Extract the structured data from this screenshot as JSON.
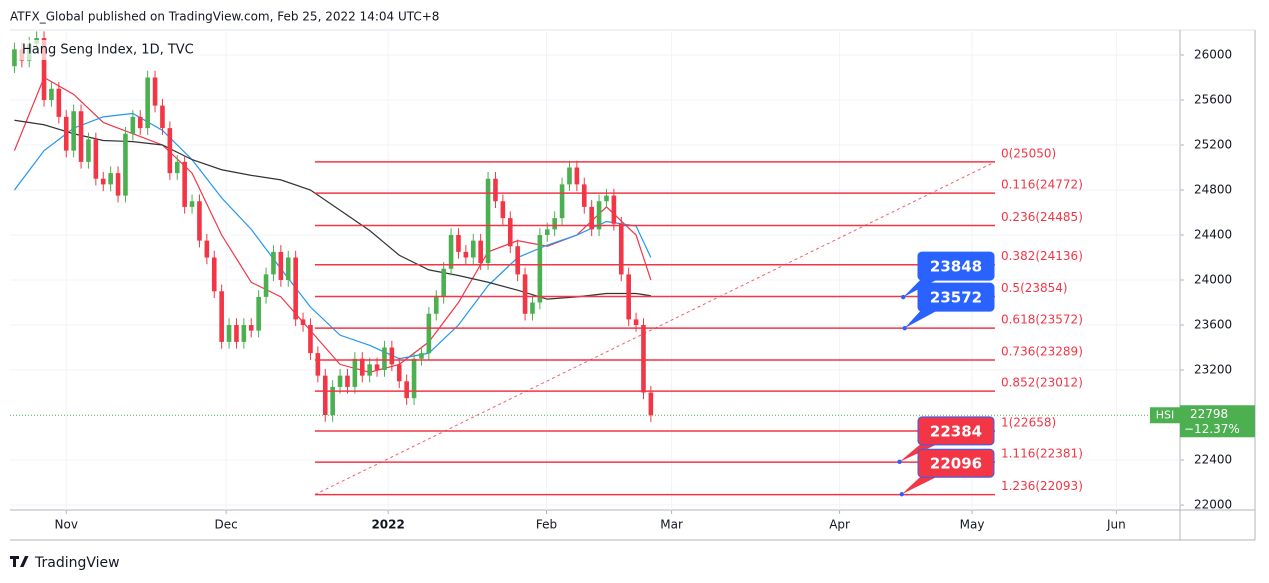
{
  "header": {
    "publisher": "ATFX_Global published on TradingView.com, Feb 25, 2022 14:04 UTC+8",
    "brand": "TradingView"
  },
  "chart_data": {
    "type": "candlestick",
    "title": "Hang Seng Index, 1D, TVC",
    "up_color": "#4caf50",
    "down_color": "#f23645",
    "xlim": [
      -0.6,
      157.5
    ],
    "xticks": [
      {
        "value": 7,
        "label": "Nov"
      },
      {
        "value": 28.6,
        "label": "Dec"
      },
      {
        "value": 50.5,
        "label": "2022"
      },
      {
        "value": 71.9,
        "label": "Feb"
      },
      {
        "value": 88.8,
        "label": "Mar"
      },
      {
        "value": 111.5,
        "label": "Apr"
      },
      {
        "value": 129.4,
        "label": "May"
      },
      {
        "value": 148.9,
        "label": "Jun"
      }
    ],
    "ylim": [
      21956,
      26222
    ],
    "yticks": [
      22000,
      22400,
      23200,
      23600,
      24000,
      24400,
      24800,
      25200,
      25600,
      26000
    ],
    "grid": true,
    "open": [
      25900,
      26050,
      25950,
      26100,
      26150,
      25600,
      25700,
      25450,
      25150,
      25500,
      25050,
      25250,
      24900,
      24850,
      24950,
      24750,
      25300,
      25450,
      25350,
      25800,
      25550,
      25350,
      24950,
      25050,
      24650,
      24700,
      24350,
      24200,
      23900,
      23450,
      23600,
      23450,
      23600,
      23550,
      23850,
      24050,
      24250,
      24000,
      24200,
      23650,
      23600,
      23350,
      23150,
      22800,
      23050,
      23150,
      23050,
      23300,
      23150,
      23250,
      23200,
      23400,
      23250,
      23100,
      22950,
      23300,
      23350,
      23700,
      23850,
      24100,
      24400,
      24250,
      24200,
      24350,
      24150,
      24900,
      24700,
      24550,
      24300,
      24050,
      23700,
      23800,
      24400,
      24450,
      24550,
      24850,
      25000,
      24850,
      24650,
      24450,
      24700,
      24750,
      24500,
      24050,
      23650,
      23600,
      23000
    ],
    "high": [
      26110,
      26110,
      26160,
      26210,
      26210,
      25760,
      25760,
      25510,
      25560,
      25560,
      25310,
      25310,
      24960,
      25010,
      25010,
      25360,
      25510,
      25510,
      25860,
      25860,
      25610,
      25410,
      25110,
      25110,
      24760,
      24760,
      24410,
      24260,
      23960,
      23660,
      23660,
      23660,
      23660,
      23910,
      24110,
      24310,
      24310,
      24260,
      24260,
      23710,
      23660,
      23410,
      23210,
      23110,
      23210,
      23210,
      23360,
      23360,
      23310,
      23310,
      23460,
      23460,
      23310,
      23160,
      23360,
      23410,
      23760,
      23910,
      24160,
      24460,
      24460,
      24310,
      24410,
      24410,
      24960,
      24960,
      24760,
      24610,
      24360,
      24110,
      23860,
      24460,
      24510,
      24610,
      24910,
      25060,
      25060,
      24910,
      24710,
      24760,
      24810,
      24810,
      24560,
      24110,
      23710,
      23660,
      23060
    ],
    "low": [
      25840,
      25890,
      25890,
      26040,
      25540,
      25540,
      25390,
      25090,
      25090,
      24990,
      24990,
      24840,
      24790,
      24790,
      24690,
      24690,
      25240,
      25290,
      25290,
      25490,
      25290,
      24890,
      24890,
      24590,
      24590,
      24290,
      24140,
      23840,
      23390,
      23390,
      23390,
      23390,
      23490,
      23490,
      23790,
      23990,
      23940,
      23940,
      23590,
      23540,
      23290,
      23090,
      22740,
      22740,
      22990,
      22990,
      22990,
      23090,
      23090,
      23140,
      23140,
      23190,
      23040,
      22890,
      22890,
      23240,
      23290,
      23640,
      23790,
      24040,
      24190,
      24140,
      24140,
      24090,
      24090,
      24640,
      24490,
      24240,
      23990,
      23640,
      23640,
      23740,
      24340,
      24390,
      24490,
      24790,
      24790,
      24590,
      24390,
      24390,
      24640,
      24440,
      23990,
      23590,
      23540,
      22940,
      22738
    ],
    "close": [
      26050,
      25950,
      26100,
      26150,
      25600,
      25700,
      25450,
      25150,
      25500,
      25050,
      25250,
      24900,
      24850,
      24950,
      24750,
      25300,
      25450,
      25350,
      25800,
      25550,
      25350,
      24950,
      25050,
      24650,
      24700,
      24350,
      24200,
      23900,
      23450,
      23600,
      23450,
      23600,
      23550,
      23850,
      24050,
      24250,
      24000,
      24200,
      23650,
      23600,
      23350,
      23150,
      22800,
      23050,
      23150,
      23050,
      23300,
      23150,
      23250,
      23200,
      23400,
      23250,
      23100,
      22950,
      23300,
      23350,
      23700,
      23850,
      24100,
      24400,
      24250,
      24200,
      24350,
      24150,
      24900,
      24700,
      24550,
      24300,
      24050,
      23700,
      23800,
      24400,
      24450,
      24550,
      24850,
      25000,
      24850,
      24650,
      24450,
      24700,
      24750,
      24500,
      24050,
      23650,
      23600,
      23000,
      22798
    ],
    "series": [
      {
        "color": "#f23645",
        "x": [
          0,
          4,
          8,
          12,
          16,
          20,
          24,
          28,
          32,
          36,
          40,
          44,
          48,
          52,
          56,
          60,
          64,
          68,
          72,
          76,
          80,
          84,
          86
        ],
        "values": [
          25150,
          25800,
          25650,
          25400,
          25300,
          25200,
          24950,
          24400,
          23980,
          23850,
          23550,
          23250,
          23180,
          23250,
          23450,
          23800,
          24250,
          24350,
          24300,
          24400,
          24650,
          24400,
          24000
        ]
      },
      {
        "color": "#2196f3",
        "x": [
          0,
          4,
          8,
          12,
          16,
          20,
          24,
          28,
          32,
          36,
          40,
          44,
          48,
          52,
          56,
          60,
          64,
          68,
          72,
          76,
          80,
          84,
          86
        ],
        "values": [
          24800,
          25150,
          25350,
          25450,
          25480,
          25330,
          25070,
          24730,
          24450,
          24100,
          23760,
          23510,
          23420,
          23300,
          23350,
          23600,
          23950,
          24200,
          24310,
          24400,
          24520,
          24480,
          24200
        ]
      },
      {
        "color": "#333333",
        "x": [
          0,
          4,
          8,
          12,
          16,
          20,
          24,
          28,
          32,
          36,
          40,
          44,
          48,
          52,
          56,
          60,
          64,
          68,
          72,
          76,
          80,
          84,
          86
        ],
        "values": [
          25420,
          25380,
          25300,
          25240,
          25230,
          25200,
          25070,
          24980,
          24930,
          24890,
          24800,
          24620,
          24440,
          24220,
          24090,
          24040,
          23980,
          23910,
          23830,
          23850,
          23880,
          23880,
          23860
        ]
      }
    ],
    "fib": {
      "color": "#f23645",
      "x_start": 40.6,
      "x_end": 132.5,
      "levels": [
        {
          "value": 25050,
          "label": "0(25050)"
        },
        {
          "value": 24772,
          "label": "0.116(24772)"
        },
        {
          "value": 24485,
          "label": "0.236(24485)"
        },
        {
          "value": 24136,
          "label": "0.382(24136)"
        },
        {
          "value": 23854,
          "label": "0.5(23854)"
        },
        {
          "value": 23572,
          "label": "0.618(23572)"
        },
        {
          "value": 23289,
          "label": "0.736(23289)"
        },
        {
          "value": 23012,
          "label": "0.852(23012)"
        },
        {
          "value": 22658,
          "label": "1(22658)"
        },
        {
          "value": 22381,
          "label": "1.116(22381)"
        },
        {
          "value": 22093,
          "label": "1.236(22093)"
        }
      ]
    },
    "callouts": [
      {
        "x": 120.1,
        "value": 23848,
        "color": "#2962ff"
      },
      {
        "x": 120.3,
        "value": 23572,
        "color": "#2962ff"
      },
      {
        "x": 119.6,
        "value": 22384,
        "color": "#f23645"
      },
      {
        "x": 119.9,
        "value": 22096,
        "color": "#f23645"
      }
    ],
    "price_tag": {
      "symbol": "HSI",
      "value": 22798,
      "change": {
        "value": -12.37,
        "label": "−12.37%"
      },
      "color": "#4caf50"
    }
  }
}
